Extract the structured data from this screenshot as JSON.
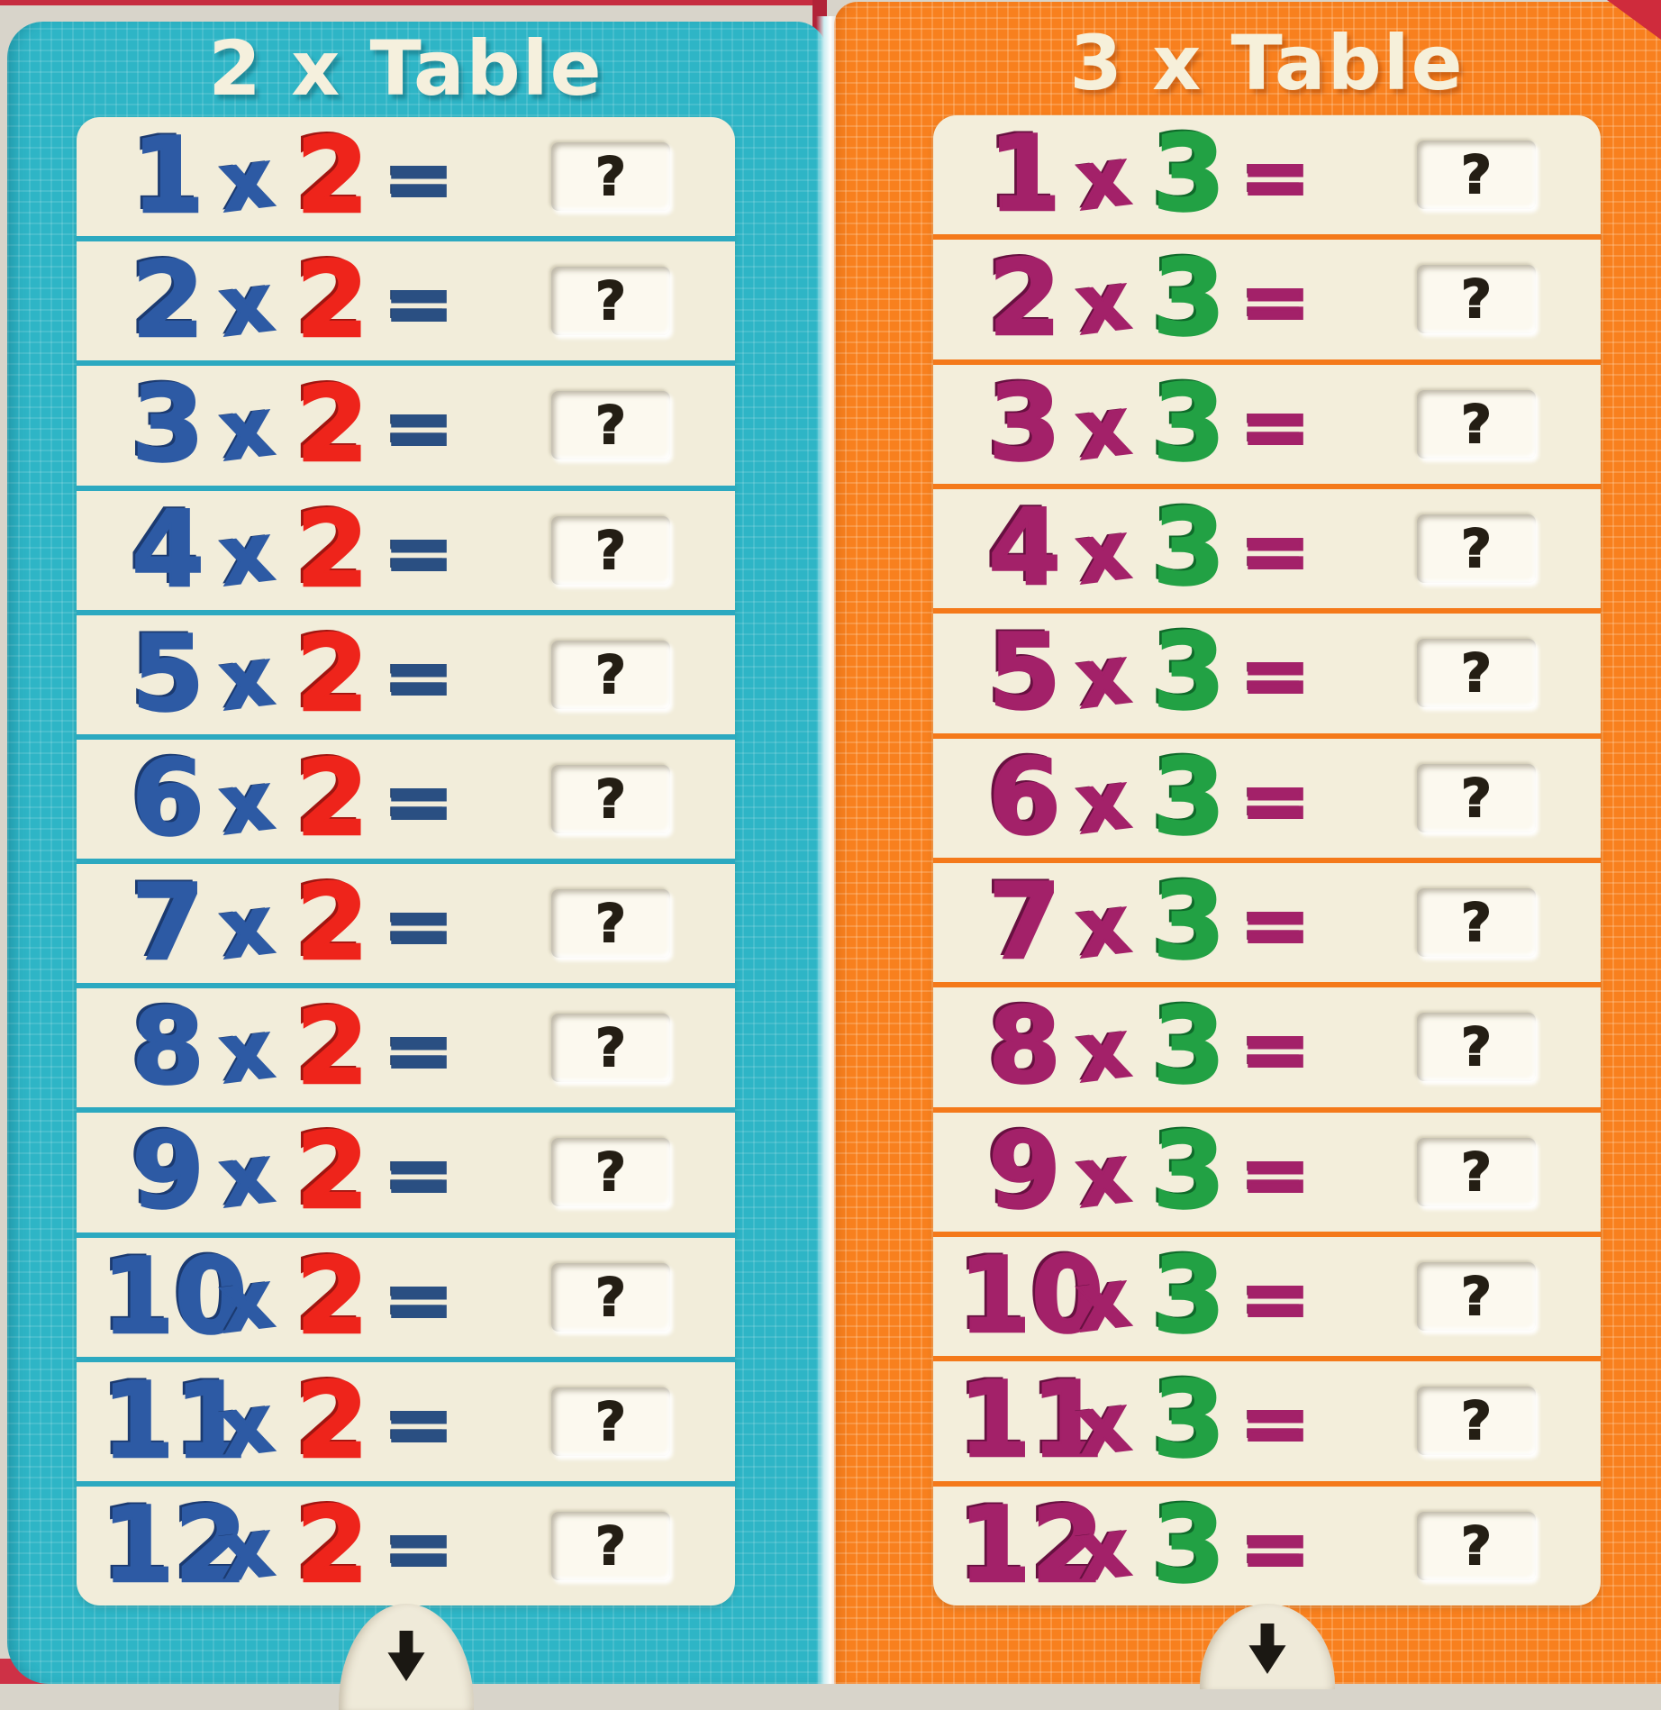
{
  "book": {
    "pages": [
      {
        "title": "2 x Table",
        "factor": "2",
        "colors": {
          "card": "#2eb5c6",
          "card_line": "rgba(255,255,255,0.12)",
          "divider": "#2ca9c0",
          "panel": "#f2edda",
          "title": "#f5f0dd",
          "title_sh": "rgba(0,70,85,0.38)",
          "num1": "#2d5aa4",
          "num1_sh": "#1b3a70",
          "op": "#2d5aa4",
          "num2": "#ee241b",
          "num2_sh": "#a01510",
          "eq": "#2a4f82",
          "eq_sh": "#18335c",
          "window": "#fcf9ef",
          "answer": "#241e14",
          "tab": "#efead9",
          "arrow": "#1b1813"
        },
        "rows": [
          {
            "lhs": "1",
            "op": "x",
            "rhs": "2",
            "eq": "=",
            "answer": "?"
          },
          {
            "lhs": "2",
            "op": "x",
            "rhs": "2",
            "eq": "=",
            "answer": "?"
          },
          {
            "lhs": "3",
            "op": "x",
            "rhs": "2",
            "eq": "=",
            "answer": "?"
          },
          {
            "lhs": "4",
            "op": "x",
            "rhs": "2",
            "eq": "=",
            "answer": "?"
          },
          {
            "lhs": "5",
            "op": "x",
            "rhs": "2",
            "eq": "=",
            "answer": "?"
          },
          {
            "lhs": "6",
            "op": "x",
            "rhs": "2",
            "eq": "=",
            "answer": "?"
          },
          {
            "lhs": "7",
            "op": "x",
            "rhs": "2",
            "eq": "=",
            "answer": "?"
          },
          {
            "lhs": "8",
            "op": "x",
            "rhs": "2",
            "eq": "=",
            "answer": "?"
          },
          {
            "lhs": "9",
            "op": "x",
            "rhs": "2",
            "eq": "=",
            "answer": "?"
          },
          {
            "lhs": "10",
            "op": "x",
            "rhs": "2",
            "eq": "=",
            "answer": "?"
          },
          {
            "lhs": "11",
            "op": "x",
            "rhs": "2",
            "eq": "=",
            "answer": "?"
          },
          {
            "lhs": "12",
            "op": "x",
            "rhs": "2",
            "eq": "=",
            "answer": "?"
          }
        ]
      },
      {
        "title": "3 x Table",
        "factor": "3",
        "colors": {
          "card": "#f8801e",
          "card_line": "rgba(255,235,210,0.22)",
          "divider": "#f4791a",
          "panel": "#f3eedb",
          "title": "#f6f0da",
          "title_sh": "rgba(150,55,0,0.40)",
          "num1": "#a32169",
          "num1_sh": "#671040",
          "op": "#a32169",
          "num2": "#22a144",
          "num2_sh": "#0f6a2a",
          "eq": "#a32169",
          "eq_sh": "#671040",
          "window": "#fcf9ef",
          "answer": "#241e14",
          "tab": "#efead9",
          "arrow": "#1b1813"
        },
        "rows": [
          {
            "lhs": "1",
            "op": "x",
            "rhs": "3",
            "eq": "=",
            "answer": "?"
          },
          {
            "lhs": "2",
            "op": "x",
            "rhs": "3",
            "eq": "=",
            "answer": "?"
          },
          {
            "lhs": "3",
            "op": "x",
            "rhs": "3",
            "eq": "=",
            "answer": "?"
          },
          {
            "lhs": "4",
            "op": "x",
            "rhs": "3",
            "eq": "=",
            "answer": "?"
          },
          {
            "lhs": "5",
            "op": "x",
            "rhs": "3",
            "eq": "=",
            "answer": "?"
          },
          {
            "lhs": "6",
            "op": "x",
            "rhs": "3",
            "eq": "=",
            "answer": "?"
          },
          {
            "lhs": "7",
            "op": "x",
            "rhs": "3",
            "eq": "=",
            "answer": "?"
          },
          {
            "lhs": "8",
            "op": "x",
            "rhs": "3",
            "eq": "=",
            "answer": "?"
          },
          {
            "lhs": "9",
            "op": "x",
            "rhs": "3",
            "eq": "=",
            "answer": "?"
          },
          {
            "lhs": "10",
            "op": "x",
            "rhs": "3",
            "eq": "=",
            "answer": "?"
          },
          {
            "lhs": "11",
            "op": "x",
            "rhs": "3",
            "eq": "=",
            "answer": "?"
          },
          {
            "lhs": "12",
            "op": "x",
            "rhs": "3",
            "eq": "=",
            "answer": "?"
          }
        ]
      }
    ]
  }
}
